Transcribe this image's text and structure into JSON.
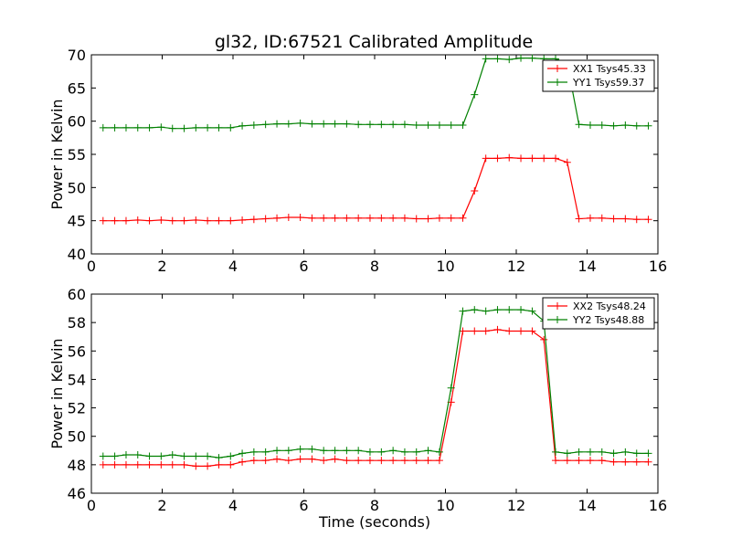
{
  "chart_data": [
    {
      "type": "line",
      "title": "gl32, ID:67521 Calibrated Amplitude",
      "xlabel": "",
      "ylabel": "Power in Kelvin",
      "xlim": [
        0,
        16
      ],
      "ylim": [
        40,
        70
      ],
      "xticks": [
        "0",
        "2",
        "4",
        "6",
        "8",
        "10",
        "12",
        "14",
        "16"
      ],
      "yticks": [
        "40",
        "45",
        "50",
        "55",
        "60",
        "65",
        "70"
      ],
      "legend_position": "top-right",
      "grid": false,
      "x": [
        0.33,
        0.66,
        0.98,
        1.31,
        1.64,
        1.97,
        2.29,
        2.62,
        2.95,
        3.28,
        3.6,
        3.93,
        4.26,
        4.59,
        4.92,
        5.24,
        5.57,
        5.9,
        6.23,
        6.56,
        6.88,
        7.21,
        7.54,
        7.87,
        8.19,
        8.52,
        8.85,
        9.18,
        9.51,
        9.83,
        10.16,
        10.49,
        10.82,
        11.14,
        11.47,
        11.8,
        12.13,
        12.45,
        12.78,
        13.11,
        13.44,
        13.77,
        14.09,
        14.42,
        14.75,
        15.08,
        15.4,
        15.73
      ],
      "series": [
        {
          "name": "XX1 Tsys45.33",
          "color": "#ff0000",
          "values": [
            45.0,
            45.0,
            45.0,
            45.1,
            45.0,
            45.1,
            45.0,
            45.0,
            45.1,
            45.0,
            45.0,
            45.0,
            45.1,
            45.2,
            45.3,
            45.4,
            45.5,
            45.5,
            45.4,
            45.4,
            45.4,
            45.4,
            45.4,
            45.4,
            45.4,
            45.4,
            45.4,
            45.3,
            45.3,
            45.4,
            45.4,
            45.4,
            49.5,
            54.4,
            54.4,
            54.5,
            54.4,
            54.4,
            54.4,
            54.4,
            53.8,
            45.3,
            45.4,
            45.4,
            45.3,
            45.3,
            45.2,
            45.2
          ]
        },
        {
          "name": "YY1 Tsys59.37",
          "color": "#008000",
          "values": [
            59.0,
            59.0,
            59.0,
            59.0,
            59.0,
            59.1,
            58.9,
            58.9,
            59.0,
            59.0,
            59.0,
            59.0,
            59.3,
            59.4,
            59.5,
            59.6,
            59.6,
            59.7,
            59.6,
            59.6,
            59.6,
            59.6,
            59.5,
            59.5,
            59.5,
            59.5,
            59.5,
            59.4,
            59.4,
            59.4,
            59.4,
            59.4,
            64.0,
            69.4,
            69.4,
            69.3,
            69.5,
            69.5,
            69.4,
            69.4,
            68.7,
            59.5,
            59.4,
            59.4,
            59.3,
            59.4,
            59.3,
            59.3
          ]
        }
      ]
    },
    {
      "type": "line",
      "title": "",
      "xlabel": "Time (seconds)",
      "ylabel": "Power in Kelvin",
      "xlim": [
        0,
        16
      ],
      "ylim": [
        46,
        60
      ],
      "xticks": [
        "0",
        "2",
        "4",
        "6",
        "8",
        "10",
        "12",
        "14",
        "16"
      ],
      "yticks": [
        "46",
        "48",
        "50",
        "52",
        "54",
        "56",
        "58",
        "60"
      ],
      "legend_position": "top-right",
      "grid": false,
      "x": [
        0.33,
        0.66,
        0.98,
        1.31,
        1.64,
        1.97,
        2.29,
        2.62,
        2.95,
        3.28,
        3.6,
        3.93,
        4.26,
        4.59,
        4.92,
        5.24,
        5.57,
        5.9,
        6.23,
        6.56,
        6.88,
        7.21,
        7.54,
        7.87,
        8.19,
        8.52,
        8.85,
        9.18,
        9.51,
        9.83,
        10.16,
        10.49,
        10.82,
        11.14,
        11.47,
        11.8,
        12.13,
        12.45,
        12.78,
        13.11,
        13.44,
        13.77,
        14.09,
        14.42,
        14.75,
        15.08,
        15.4,
        15.73
      ],
      "series": [
        {
          "name": "XX2 Tsys48.24",
          "color": "#ff0000",
          "values": [
            48.0,
            48.0,
            48.0,
            48.0,
            48.0,
            48.0,
            48.0,
            48.0,
            47.9,
            47.9,
            48.0,
            48.0,
            48.2,
            48.3,
            48.3,
            48.4,
            48.3,
            48.4,
            48.4,
            48.3,
            48.4,
            48.3,
            48.3,
            48.3,
            48.3,
            48.3,
            48.3,
            48.3,
            48.3,
            48.3,
            52.4,
            57.4,
            57.4,
            57.4,
            57.5,
            57.4,
            57.4,
            57.4,
            56.8,
            48.3,
            48.3,
            48.3,
            48.3,
            48.3,
            48.2,
            48.2,
            48.2,
            48.2
          ]
        },
        {
          "name": "YY2 Tsys48.88",
          "color": "#008000",
          "values": [
            48.6,
            48.6,
            48.7,
            48.7,
            48.6,
            48.6,
            48.7,
            48.6,
            48.6,
            48.6,
            48.5,
            48.6,
            48.8,
            48.9,
            48.9,
            49.0,
            49.0,
            49.1,
            49.1,
            49.0,
            49.0,
            49.0,
            49.0,
            48.9,
            48.9,
            49.0,
            48.9,
            48.9,
            49.0,
            48.9,
            53.4,
            58.8,
            58.9,
            58.8,
            58.9,
            58.9,
            58.9,
            58.8,
            58.1,
            48.9,
            48.8,
            48.9,
            48.9,
            48.9,
            48.8,
            48.9,
            48.8,
            48.8
          ]
        }
      ]
    }
  ]
}
